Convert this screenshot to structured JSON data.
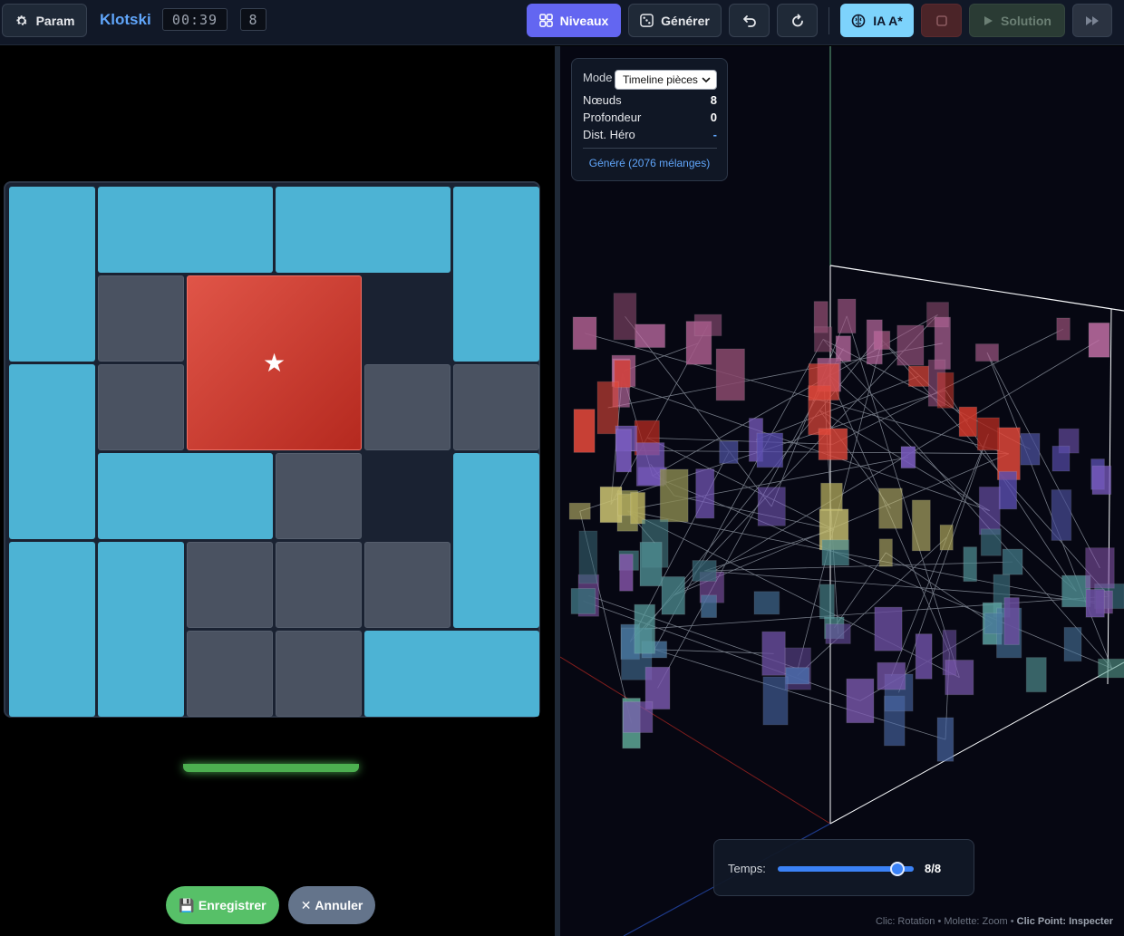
{
  "toolbar": {
    "param_label": "Param",
    "app_title": "Klotski",
    "timer": "00:39",
    "move_count": "8",
    "levels_label": "Niveaux",
    "generate_label": "Générer",
    "ai_label": "IA A*",
    "solution_label": "Solution"
  },
  "game": {
    "hero_symbol": "★",
    "save_label": "Enregistrer",
    "save_icon": "💾",
    "cancel_label": "Annuler",
    "cancel_icon": "✕",
    "colors": {
      "block": "#4db3d4",
      "small": "#4a5261",
      "hero": "#d4453a",
      "exit": "#4caf50"
    },
    "grid": {
      "cols": 6,
      "rows": 6
    },
    "pieces": [
      {
        "type": "block",
        "col": 0,
        "row": 0,
        "w": 1,
        "h": 2
      },
      {
        "type": "block",
        "col": 1,
        "row": 0,
        "w": 2,
        "h": 1
      },
      {
        "type": "block",
        "col": 3,
        "row": 0,
        "w": 2,
        "h": 1
      },
      {
        "type": "block",
        "col": 5,
        "row": 0,
        "w": 1,
        "h": 2
      },
      {
        "type": "small",
        "col": 1,
        "row": 1,
        "w": 1,
        "h": 1
      },
      {
        "type": "hero",
        "col": 2,
        "row": 1,
        "w": 2,
        "h": 2
      },
      {
        "type": "block",
        "col": 0,
        "row": 2,
        "w": 1,
        "h": 2
      },
      {
        "type": "small",
        "col": 1,
        "row": 2,
        "w": 1,
        "h": 1
      },
      {
        "type": "small",
        "col": 4,
        "row": 2,
        "w": 1,
        "h": 1
      },
      {
        "type": "small",
        "col": 5,
        "row": 2,
        "w": 1,
        "h": 1
      },
      {
        "type": "block",
        "col": 1,
        "row": 3,
        "w": 2,
        "h": 1
      },
      {
        "type": "small",
        "col": 3,
        "row": 3,
        "w": 1,
        "h": 1
      },
      {
        "type": "block",
        "col": 5,
        "row": 3,
        "w": 1,
        "h": 2
      },
      {
        "type": "block",
        "col": 0,
        "row": 4,
        "w": 1,
        "h": 2
      },
      {
        "type": "block",
        "col": 1,
        "row": 4,
        "w": 1,
        "h": 2
      },
      {
        "type": "small",
        "col": 2,
        "row": 4,
        "w": 1,
        "h": 1
      },
      {
        "type": "small",
        "col": 3,
        "row": 4,
        "w": 1,
        "h": 1
      },
      {
        "type": "small",
        "col": 4,
        "row": 4,
        "w": 1,
        "h": 1
      },
      {
        "type": "small",
        "col": 2,
        "row": 5,
        "w": 1,
        "h": 1
      },
      {
        "type": "small",
        "col": 3,
        "row": 5,
        "w": 1,
        "h": 1
      },
      {
        "type": "block",
        "col": 4,
        "row": 5,
        "w": 2,
        "h": 1
      }
    ]
  },
  "stats": {
    "mode_label": "Mode",
    "mode_value": "Timeline pièces",
    "nodes_label": "Nœuds",
    "nodes_value": "8",
    "depth_label": "Profondeur",
    "depth_value": "0",
    "dist_label": "Dist. Héro",
    "dist_value": "-",
    "generated_note": "Généré (2076 mélanges)"
  },
  "timeline": {
    "label": "Temps:",
    "current": 8,
    "total": 8,
    "value_text": "8/8"
  },
  "hint": {
    "rotation": "Clic: Rotation • Molette: Zoom •",
    "inspect": "Clic Point: Inspecter"
  }
}
